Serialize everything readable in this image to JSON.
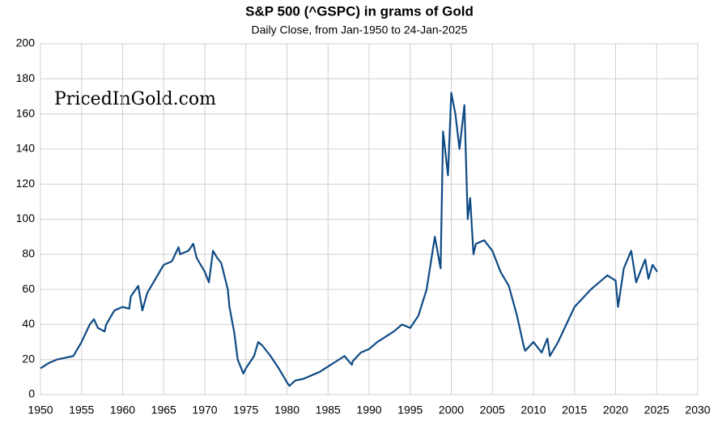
{
  "chart_data": {
    "type": "line",
    "title": "S&P 500 (^GSPC) in grams of Gold",
    "subtitle": "Daily Close, from Jan-1950 to 24-Jan-2025",
    "annotation": "PricedInGold.com",
    "x": [
      1950,
      1951,
      1952,
      1953,
      1954,
      1955,
      1956,
      1956.5,
      1957,
      1957.8,
      1958,
      1959,
      1960,
      1960.8,
      1961,
      1961.9,
      1962.4,
      1963,
      1964,
      1965,
      1966,
      1966.8,
      1967,
      1968,
      1968.6,
      1969,
      1970,
      1970.5,
      1971,
      1971.5,
      1972,
      1972.8,
      1973,
      1973.6,
      1974,
      1974.7,
      1975,
      1976,
      1976.5,
      1977,
      1978,
      1979,
      1980,
      1980.3,
      1981,
      1982,
      1983,
      1984,
      1985,
      1986,
      1987,
      1987.9,
      1988,
      1989,
      1990,
      1991,
      1992,
      1993,
      1994,
      1995,
      1996,
      1997,
      1998,
      1998.7,
      1999,
      1999.6,
      2000,
      2000.5,
      2001,
      2001.6,
      2002,
      2002.3,
      2002.7,
      2003,
      2004,
      2005,
      2006,
      2007,
      2008,
      2008.8,
      2009,
      2010,
      2011,
      2011.7,
      2012,
      2013,
      2014,
      2015,
      2016,
      2017,
      2018,
      2019,
      2020,
      2020.3,
      2021,
      2021.9,
      2022.5,
      2023,
      2023.6,
      2024,
      2024.5,
      2025.07
    ],
    "series": [
      {
        "name": "S&P 500 in grams of gold",
        "color": "#0e4a84",
        "values": [
          15,
          18,
          20,
          21,
          22,
          30,
          40,
          43,
          38,
          36,
          40,
          48,
          50,
          49,
          56,
          62,
          48,
          58,
          66,
          74,
          76,
          84,
          80,
          82,
          86,
          78,
          70,
          64,
          82,
          78,
          75,
          60,
          50,
          35,
          20,
          12,
          15,
          22,
          30,
          28,
          22,
          15,
          7,
          5,
          8,
          9,
          11,
          13,
          16,
          19,
          22,
          17,
          19,
          24,
          26,
          30,
          33,
          36,
          40,
          38,
          45,
          60,
          90,
          72,
          150,
          125,
          172,
          160,
          140,
          165,
          100,
          112,
          80,
          86,
          88,
          82,
          70,
          62,
          45,
          28,
          25,
          30,
          24,
          32,
          22,
          30,
          40,
          50,
          55,
          60,
          64,
          68,
          65,
          50,
          72,
          82,
          64,
          70,
          77,
          66,
          74,
          70
        ]
      }
    ],
    "xlim": [
      1950,
      2030
    ],
    "xticks": [
      1950,
      1955,
      1960,
      1965,
      1970,
      1975,
      1980,
      1985,
      1990,
      1995,
      2000,
      2005,
      2010,
      2015,
      2020,
      2025,
      2030
    ],
    "ylim": [
      0,
      200
    ],
    "yticks": [
      0,
      20,
      40,
      60,
      80,
      100,
      120,
      140,
      160,
      180,
      200
    ],
    "grid": true
  }
}
